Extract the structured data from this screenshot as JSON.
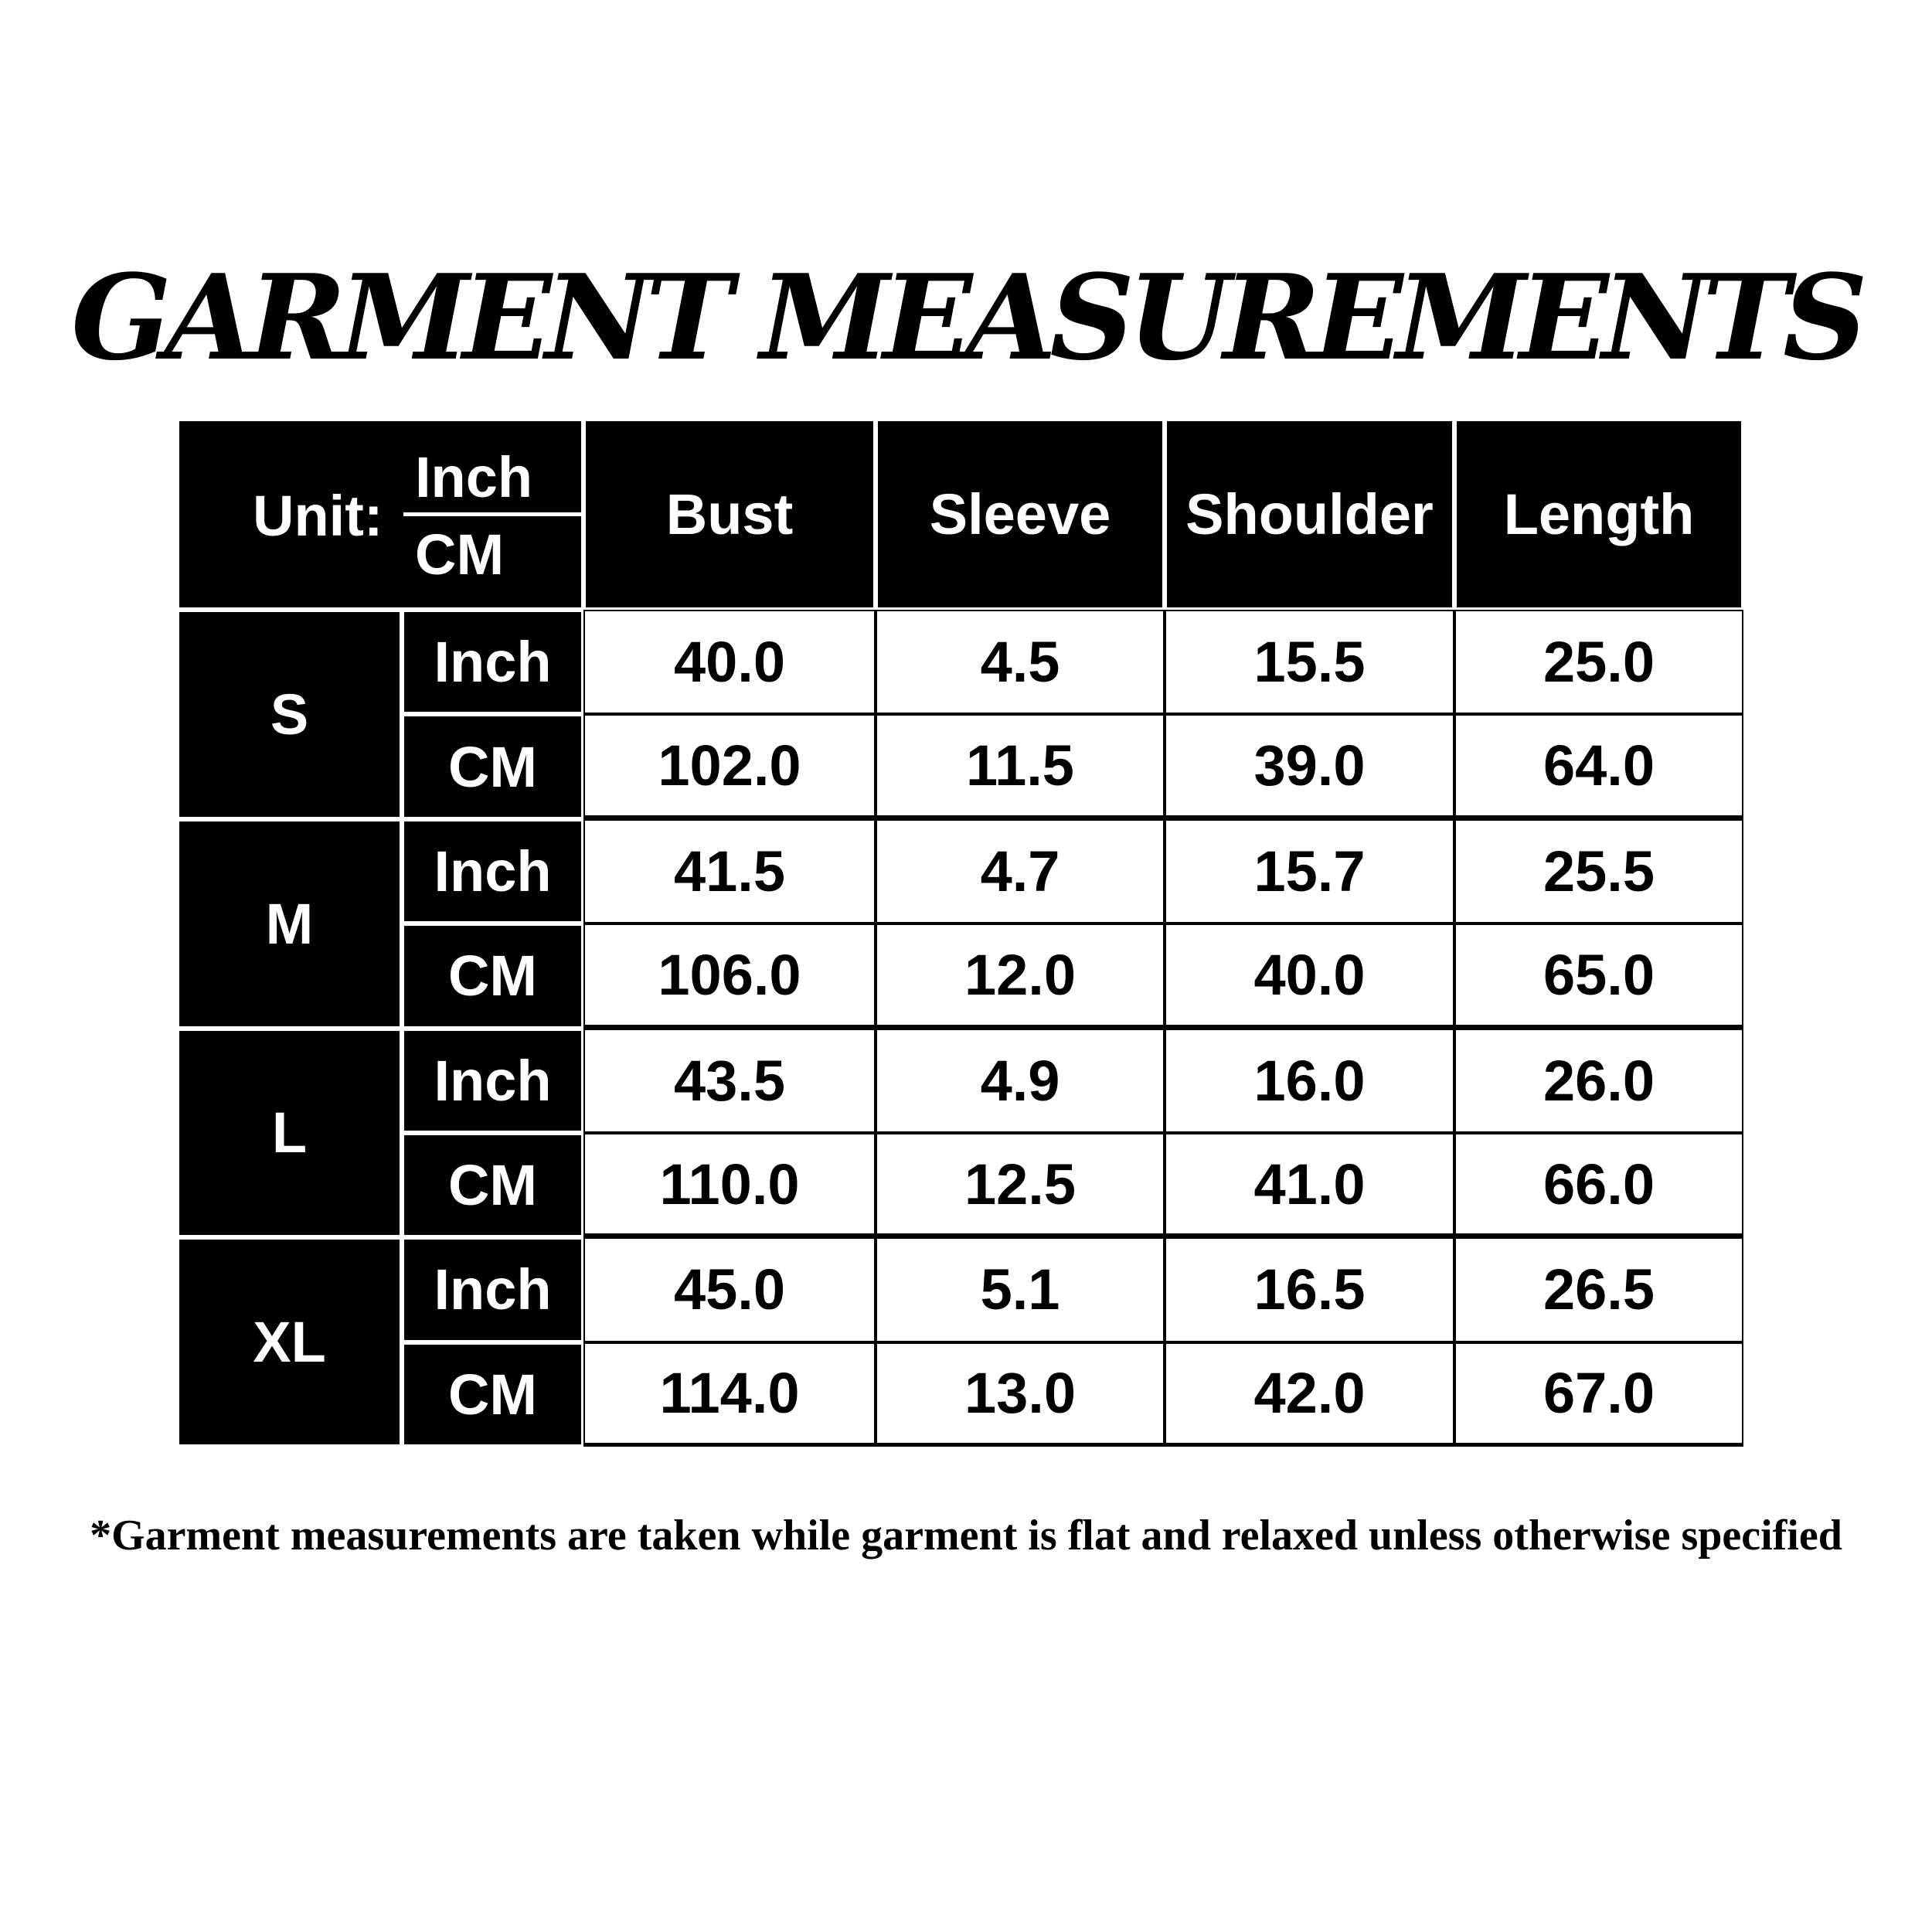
{
  "title": "GARMENT MEASUREMENTS",
  "table": {
    "unit_label": "Unit:",
    "unit_top": "Inch",
    "unit_bottom": "CM",
    "columns": [
      "Bust",
      "Sleeve",
      "Shoulder",
      "Length"
    ],
    "sizes": [
      {
        "size": "S",
        "rows": [
          {
            "unit": "Inch",
            "values": [
              "40.0",
              "4.5",
              "15.5",
              "25.0"
            ]
          },
          {
            "unit": "CM",
            "values": [
              "102.0",
              "11.5",
              "39.0",
              "64.0"
            ]
          }
        ]
      },
      {
        "size": "M",
        "rows": [
          {
            "unit": "Inch",
            "values": [
              "41.5",
              "4.7",
              "15.7",
              "25.5"
            ]
          },
          {
            "unit": "CM",
            "values": [
              "106.0",
              "12.0",
              "40.0",
              "65.0"
            ]
          }
        ]
      },
      {
        "size": "L",
        "rows": [
          {
            "unit": "Inch",
            "values": [
              "43.5",
              "4.9",
              "16.0",
              "26.0"
            ]
          },
          {
            "unit": "CM",
            "values": [
              "110.0",
              "12.5",
              "41.0",
              "66.0"
            ]
          }
        ]
      },
      {
        "size": "XL",
        "rows": [
          {
            "unit": "Inch",
            "values": [
              "45.0",
              "5.1",
              "16.5",
              "26.5"
            ]
          },
          {
            "unit": "CM",
            "values": [
              "114.0",
              "13.0",
              "42.0",
              "67.0"
            ]
          }
        ]
      }
    ]
  },
  "footnote": "*Garment measurements are taken while garment is flat and relaxed unless otherwise specified"
}
